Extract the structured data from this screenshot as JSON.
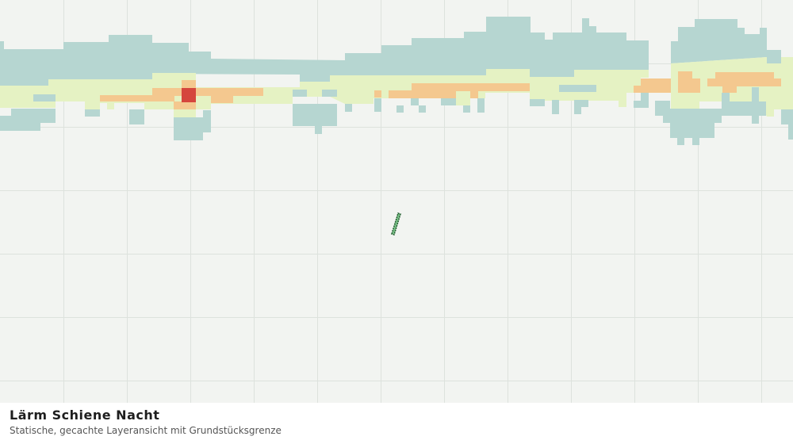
{
  "map": {
    "title": "Lärm Schiene Nacht",
    "subtitle": "Statische, gecachte Layeransicht mit Grundstücksgrenze"
  }
}
